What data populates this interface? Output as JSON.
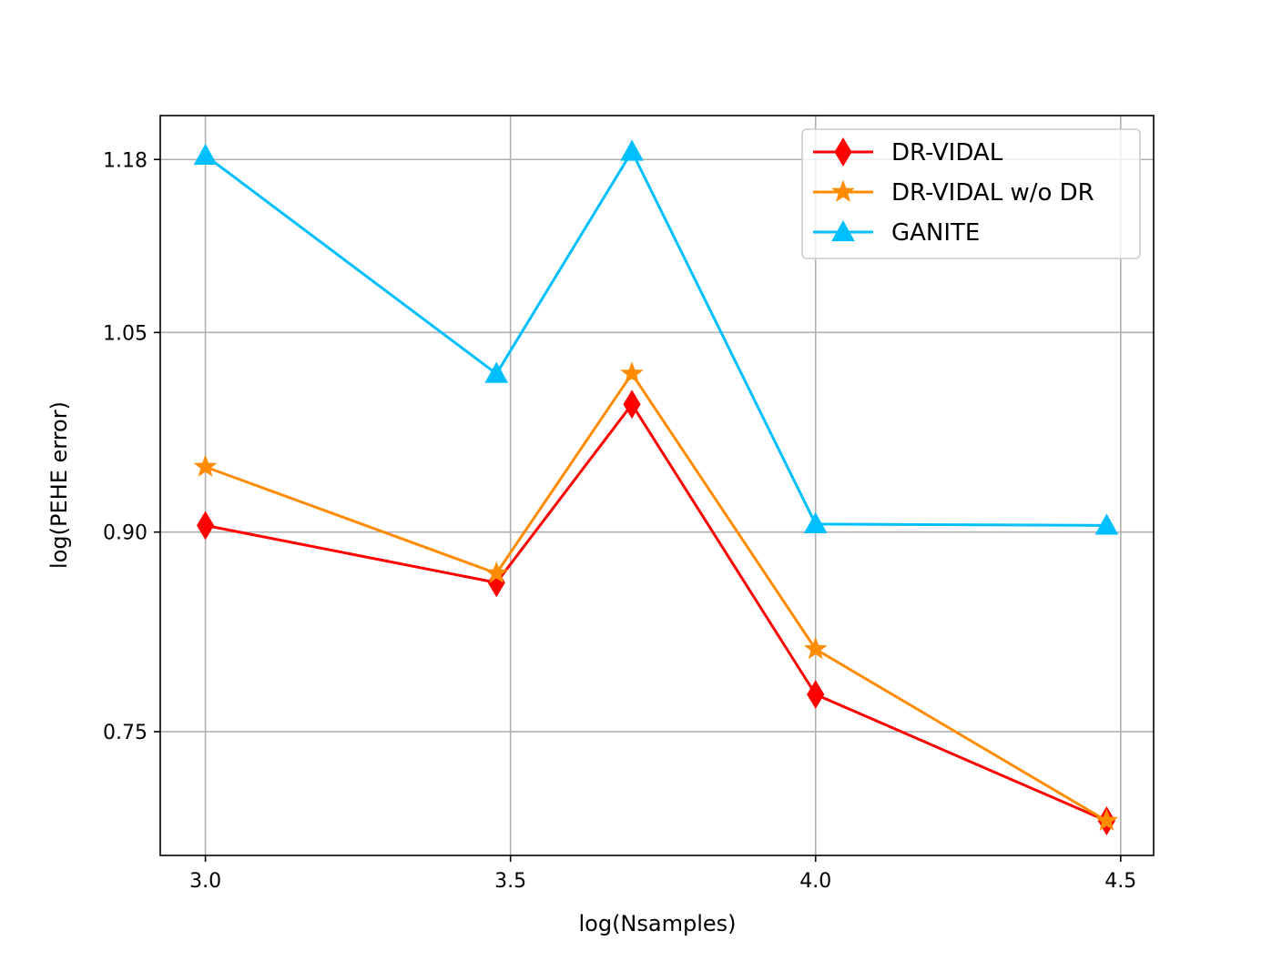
{
  "chart_data": {
    "type": "line",
    "title": "",
    "xlabel": "log(Nsamples)",
    "ylabel": "log(PEHE error)",
    "xlim": [
      2.926,
      4.554
    ],
    "ylim": [
      0.657,
      1.213
    ],
    "xticks": [
      3.0,
      3.5,
      4.0,
      4.5
    ],
    "xtick_labels": [
      "3.0",
      "3.5",
      "4.0",
      "4.5"
    ],
    "yticks": [
      0.75,
      0.9,
      1.05,
      1.18
    ],
    "ytick_labels": [
      "0.75",
      "0.90",
      "1.05",
      "1.18"
    ],
    "grid": true,
    "legend_position": "top-right",
    "x": [
      3.0,
      3.477,
      3.699,
      4.0,
      4.477
    ],
    "series": [
      {
        "name": "DR-VIDAL",
        "color": "#ff0000",
        "marker": "diamond",
        "values": [
          0.905,
          0.862,
          0.996,
          0.778,
          0.683
        ]
      },
      {
        "name": "DR-VIDAL w/o DR",
        "color": "#ff8c00",
        "marker": "star",
        "values": [
          0.949,
          0.869,
          1.019,
          0.812,
          0.683
        ]
      },
      {
        "name": "GANITE",
        "color": "#00bfff",
        "marker": "triangle",
        "values": [
          1.183,
          1.019,
          1.186,
          0.906,
          0.905
        ]
      }
    ]
  }
}
